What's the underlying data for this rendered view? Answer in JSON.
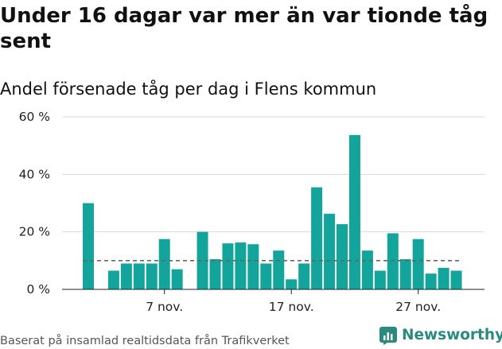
{
  "title": "Under 16 dagar var mer än var tionde tåg sent",
  "subtitle": "Andel försenade tåg per dag i Flens kommun",
  "footer": "Baserat på insamlad realtidsdata från Trafikverket",
  "brand": {
    "name": "Newsworthy",
    "icon": "newsworthy-logo-icon",
    "color": "#2a8a7e"
  },
  "chart_data": {
    "type": "bar",
    "x_start_day": 1,
    "x_month": "nov.",
    "values": [
      30,
      null,
      6.5,
      9,
      9,
      9,
      17.5,
      7,
      null,
      20,
      10.5,
      16,
      16.3,
      15.7,
      9,
      13.5,
      3.5,
      9,
      35.5,
      26.3,
      22.7,
      53.7,
      13.5,
      6.5,
      19.5,
      10.5,
      17.5,
      5.5,
      7.5,
      6.5
    ],
    "reference_line": 10,
    "ylim": [
      0,
      60
    ],
    "yticks": [
      0,
      20,
      40,
      60
    ],
    "ytick_labels": [
      "0 %",
      "20 %",
      "40 %",
      "60 %"
    ],
    "xticks": [
      "7 nov.",
      "17 nov.",
      "27 nov."
    ],
    "bar_color": "#13a59b",
    "reference_line_color": "#666666",
    "grid": true
  }
}
